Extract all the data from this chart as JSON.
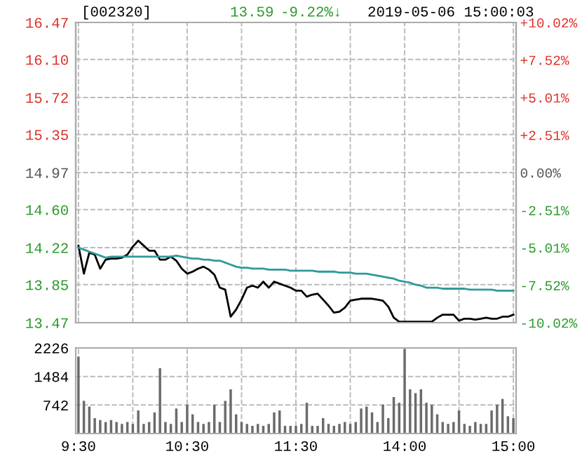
{
  "chart_data": [
    {
      "type": "line",
      "title": "[002320]",
      "annotations": [
        "13.59",
        "-9.22%↓",
        "2019-05-06 15:00:03"
      ],
      "categories": [
        null,
        null,
        null,
        null,
        null,
        null,
        null,
        null,
        null,
        null,
        null,
        null,
        null,
        null,
        null,
        null,
        null,
        null,
        null,
        null,
        null,
        null,
        null,
        null,
        null,
        null,
        null,
        null,
        null,
        null,
        null,
        null,
        null,
        null,
        null,
        null,
        null,
        null,
        null,
        null,
        null,
        null,
        null,
        null,
        null,
        null,
        null,
        null,
        null,
        null,
        null,
        null,
        null,
        null,
        null,
        null,
        null,
        null,
        null,
        null,
        null,
        null,
        null,
        null,
        null,
        null,
        null,
        null,
        null,
        null,
        null,
        null,
        null,
        null,
        null,
        null,
        null,
        null,
        null,
        null,
        null
      ],
      "ylim": [
        13.47,
        16.47
      ],
      "yticks": [
        {
          "value": 13.47,
          "label": "13.47"
        },
        {
          "value": 13.85,
          "label": "13.85"
        },
        {
          "value": 14.22,
          "label": "14.22"
        },
        {
          "value": 14.6,
          "label": "14.60"
        },
        {
          "value": 14.97,
          "label": "14.97"
        },
        {
          "value": 15.35,
          "label": "15.35"
        },
        {
          "value": 15.72,
          "label": "15.72"
        },
        {
          "value": 16.1,
          "label": "16.10"
        },
        {
          "value": 16.47,
          "label": "16.47"
        }
      ],
      "y2lim": [
        -10.02,
        10.02
      ],
      "y2ticks": [
        {
          "value": -10.02,
          "label": "-10.02%"
        },
        {
          "value": -7.52,
          "label": "-7.52%"
        },
        {
          "value": -5.01,
          "label": "-5.01%"
        },
        {
          "value": -2.51,
          "label": "-2.51%"
        },
        {
          "value": 0,
          "label": "0.00%"
        },
        {
          "value": 2.51,
          "label": "+2.51%"
        },
        {
          "value": 5.01,
          "label": "+5.01%"
        },
        {
          "value": 7.52,
          "label": "+7.52%"
        },
        {
          "value": 10.02,
          "label": "+10.02%"
        }
      ],
      "grid": true,
      "line_style": "solid",
      "series": [
        {
          "color": "#000000",
          "values": [
            14.24,
            13.96,
            14.17,
            14.15,
            14.01,
            14.1,
            14.11,
            14.11,
            14.12,
            14.15,
            14.23,
            14.29,
            14.24,
            14.19,
            14.19,
            14.1,
            14.1,
            14.13,
            14.09,
            14.01,
            13.96,
            13.98,
            14.01,
            14.03,
            14.0,
            13.95,
            13.82,
            13.8,
            13.53,
            13.6,
            13.7,
            13.82,
            13.84,
            13.82,
            13.88,
            13.82,
            13.88,
            13.86,
            13.84,
            13.82,
            13.79,
            13.79,
            13.73,
            13.75,
            13.76,
            13.7,
            13.64,
            13.57,
            13.58,
            13.62,
            13.69,
            13.7,
            13.71,
            13.71,
            13.71,
            13.7,
            13.69,
            13.63,
            13.52,
            13.48,
            13.48,
            13.48,
            13.48,
            13.48,
            13.48,
            13.48,
            13.52,
            13.55,
            13.55,
            13.55,
            13.49,
            13.51,
            13.51,
            13.5,
            13.51,
            13.52,
            13.51,
            13.51,
            13.53,
            13.53,
            13.55
          ]
        },
        {
          "color": "#2e9a98",
          "values": [
            14.22,
            14.2,
            14.18,
            14.16,
            14.14,
            14.12,
            14.13,
            14.13,
            14.13,
            14.13,
            14.13,
            14.13,
            14.13,
            14.13,
            14.13,
            14.13,
            14.13,
            14.13,
            14.14,
            14.13,
            14.12,
            14.11,
            14.11,
            14.1,
            14.1,
            14.09,
            14.09,
            14.07,
            14.05,
            14.03,
            14.02,
            14.02,
            14.01,
            14.01,
            14.01,
            14.0,
            14.0,
            14.0,
            14.0,
            13.99,
            13.99,
            13.99,
            13.99,
            13.99,
            13.98,
            13.98,
            13.98,
            13.98,
            13.97,
            13.97,
            13.97,
            13.96,
            13.96,
            13.96,
            13.95,
            13.94,
            13.93,
            13.92,
            13.91,
            13.89,
            13.88,
            13.87,
            13.85,
            13.84,
            13.82,
            13.82,
            13.82,
            13.81,
            13.81,
            13.81,
            13.81,
            13.81,
            13.8,
            13.8,
            13.8,
            13.8,
            13.8,
            13.79,
            13.79,
            13.79,
            13.79
          ]
        }
      ]
    },
    {
      "type": "bar",
      "categories": [
        "9:30",
        null,
        null,
        null,
        null,
        null,
        null,
        null,
        null,
        null,
        null,
        null,
        null,
        null,
        null,
        null,
        null,
        null,
        null,
        null,
        "10:30",
        null,
        null,
        null,
        null,
        null,
        null,
        null,
        null,
        null,
        null,
        null,
        null,
        null,
        null,
        null,
        null,
        null,
        null,
        null,
        "11:30",
        null,
        null,
        null,
        null,
        null,
        null,
        null,
        null,
        null,
        null,
        null,
        null,
        null,
        null,
        null,
        null,
        null,
        null,
        null,
        "14:00",
        null,
        null,
        null,
        null,
        null,
        null,
        null,
        null,
        null,
        null,
        null,
        null,
        null,
        null,
        null,
        null,
        null,
        null,
        null,
        "15:00"
      ],
      "ylim": [
        0,
        2226
      ],
      "yticks": [
        {
          "value": 0,
          "label": null
        },
        742,
        1484,
        2226
      ],
      "grid": true,
      "series": [
        {
          "color": "#6b6b6b",
          "values": [
            2000,
            850,
            700,
            400,
            350,
            300,
            350,
            300,
            250,
            300,
            250,
            600,
            250,
            300,
            550,
            1700,
            300,
            250,
            650,
            300,
            750,
            500,
            300,
            250,
            300,
            750,
            300,
            850,
            1150,
            500,
            300,
            250,
            200,
            250,
            200,
            250,
            550,
            600,
            200,
            200,
            200,
            250,
            800,
            200,
            200,
            400,
            250,
            200,
            250,
            300,
            250,
            300,
            650,
            700,
            550,
            300,
            750,
            400,
            950,
            800,
            2200,
            1150,
            1050,
            1150,
            800,
            750,
            500,
            300,
            250,
            300,
            600,
            250,
            200,
            300,
            250,
            250,
            600,
            750,
            900,
            450,
            400
          ]
        }
      ]
    }
  ]
}
